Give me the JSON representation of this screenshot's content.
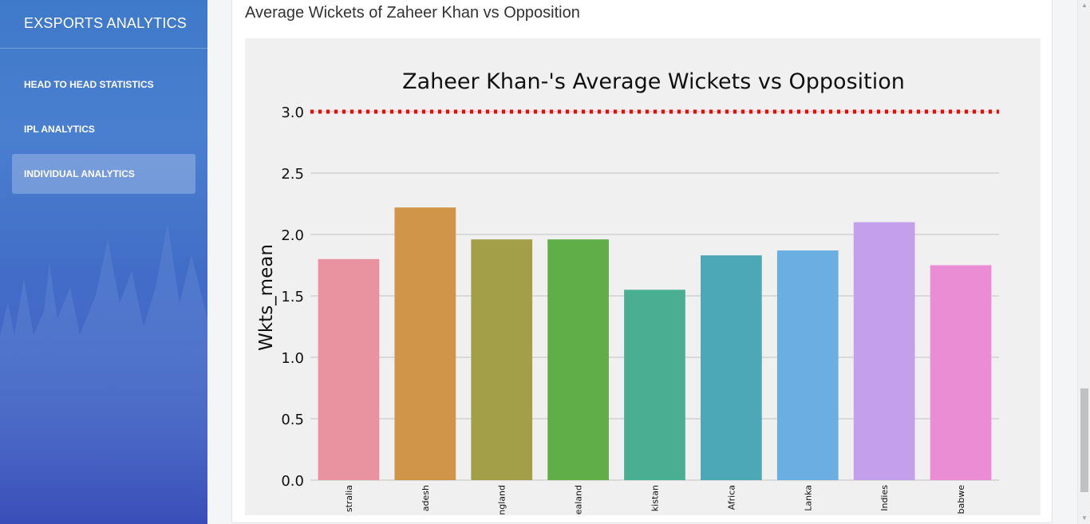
{
  "sidebar": {
    "brand": "EXSPORTS ANALYTICS",
    "items": [
      {
        "label": "HEAD TO HEAD STATISTICS",
        "active": false
      },
      {
        "label": "IPL ANALYTICS",
        "active": false
      },
      {
        "label": "INDIVIDUAL ANALYTICS",
        "active": true
      }
    ]
  },
  "card": {
    "title": "Average Wickets of Zaheer Khan vs Opposition"
  },
  "colors": {
    "plot_bg": "#f0f0f0",
    "grid": "#cbcbcb",
    "reference_line": "#ff0000"
  },
  "chart_data": {
    "type": "bar",
    "title": "Zaheer Khan-'s Average Wickets vs Opposition",
    "xlabel": "",
    "ylabel": "Wkts_mean",
    "ylim": [
      0,
      3.2
    ],
    "yticks": [
      "0.0",
      "0.5",
      "1.0",
      "1.5",
      "2.0",
      "2.5",
      "3.0"
    ],
    "grid": true,
    "categories": [
      "stralia",
      "adesh",
      "ngland",
      "ealand",
      "kistan",
      "Africa",
      "Lanka",
      "Indies",
      "babwe"
    ],
    "values": [
      1.8,
      2.22,
      1.96,
      1.96,
      1.55,
      1.83,
      1.87,
      2.1,
      1.75
    ],
    "colors": [
      "#e8939f",
      "#d09549",
      "#a39f48",
      "#60ae47",
      "#4aaf92",
      "#4ca8b7",
      "#6aaee2",
      "#c49fec",
      "#ea8dd4"
    ],
    "reference_line": {
      "y": 3.0,
      "style": "dotted",
      "color": "#ff0000"
    }
  }
}
